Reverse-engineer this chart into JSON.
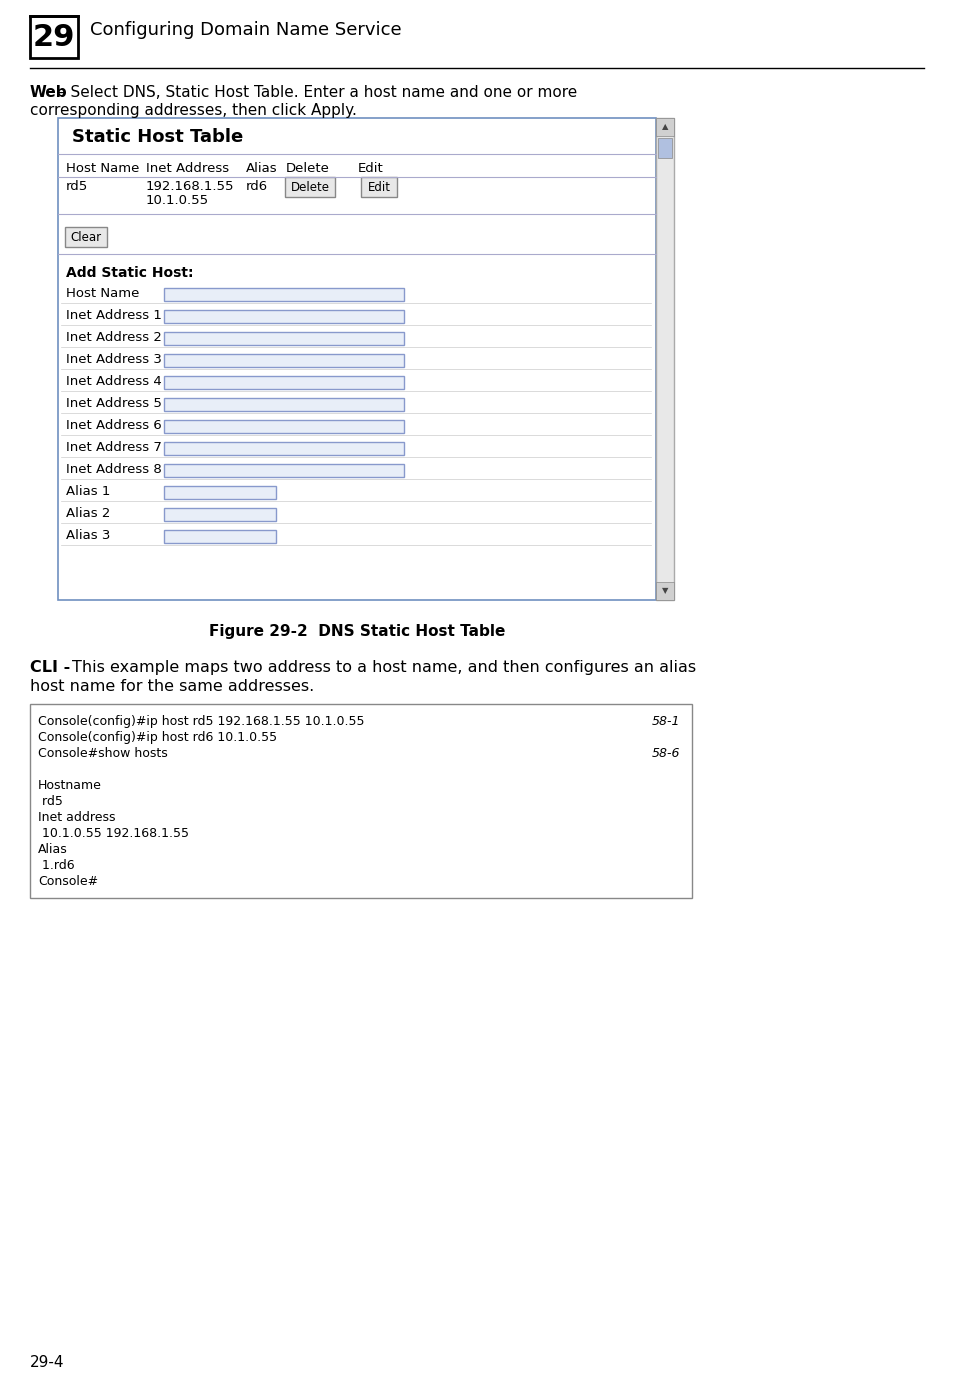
{
  "page_number": "29-4",
  "chapter_num": "29",
  "chapter_title": "Configuring Domain Name Service",
  "figure_caption": "Figure 29-2  DNS Static Host Table",
  "table_title": "Static Host Table",
  "table_headers": [
    "Host Name",
    "Inet Address",
    "Alias",
    "Delete",
    "Edit"
  ],
  "form_title": "Add Static Host:",
  "form_fields": [
    "Host Name",
    "Inet Address 1",
    "Inet Address 2",
    "Inet Address 3",
    "Inet Address 4",
    "Inet Address 5",
    "Inet Address 6",
    "Inet Address 7",
    "Inet Address 8",
    "Alias 1",
    "Alias 2",
    "Alias 3"
  ],
  "cli_lines": [
    {
      "text": "Console(config)#ip host rd5 192.168.1.55 10.1.0.55",
      "right": "58-1"
    },
    {
      "text": "Console(config)#ip host rd6 10.1.0.55",
      "right": ""
    },
    {
      "text": "Console#show hosts",
      "right": "58-6"
    },
    {
      "text": "",
      "right": ""
    },
    {
      "text": "Hostname",
      "right": ""
    },
    {
      "text": " rd5",
      "right": ""
    },
    {
      "text": "Inet address",
      "right": ""
    },
    {
      "text": " 10.1.0.55 192.168.1.55",
      "right": ""
    },
    {
      "text": "Alias",
      "right": ""
    },
    {
      "text": " 1.rd6",
      "right": ""
    },
    {
      "text": "Console#",
      "right": ""
    }
  ],
  "bg_color": "#ffffff",
  "input_border": "#8899cc",
  "input_bg": "#e8eef8",
  "cli_bg": "#ffffff",
  "cli_border": "#888888",
  "alias_fields": [
    "Alias 1",
    "Alias 2",
    "Alias 3"
  ]
}
